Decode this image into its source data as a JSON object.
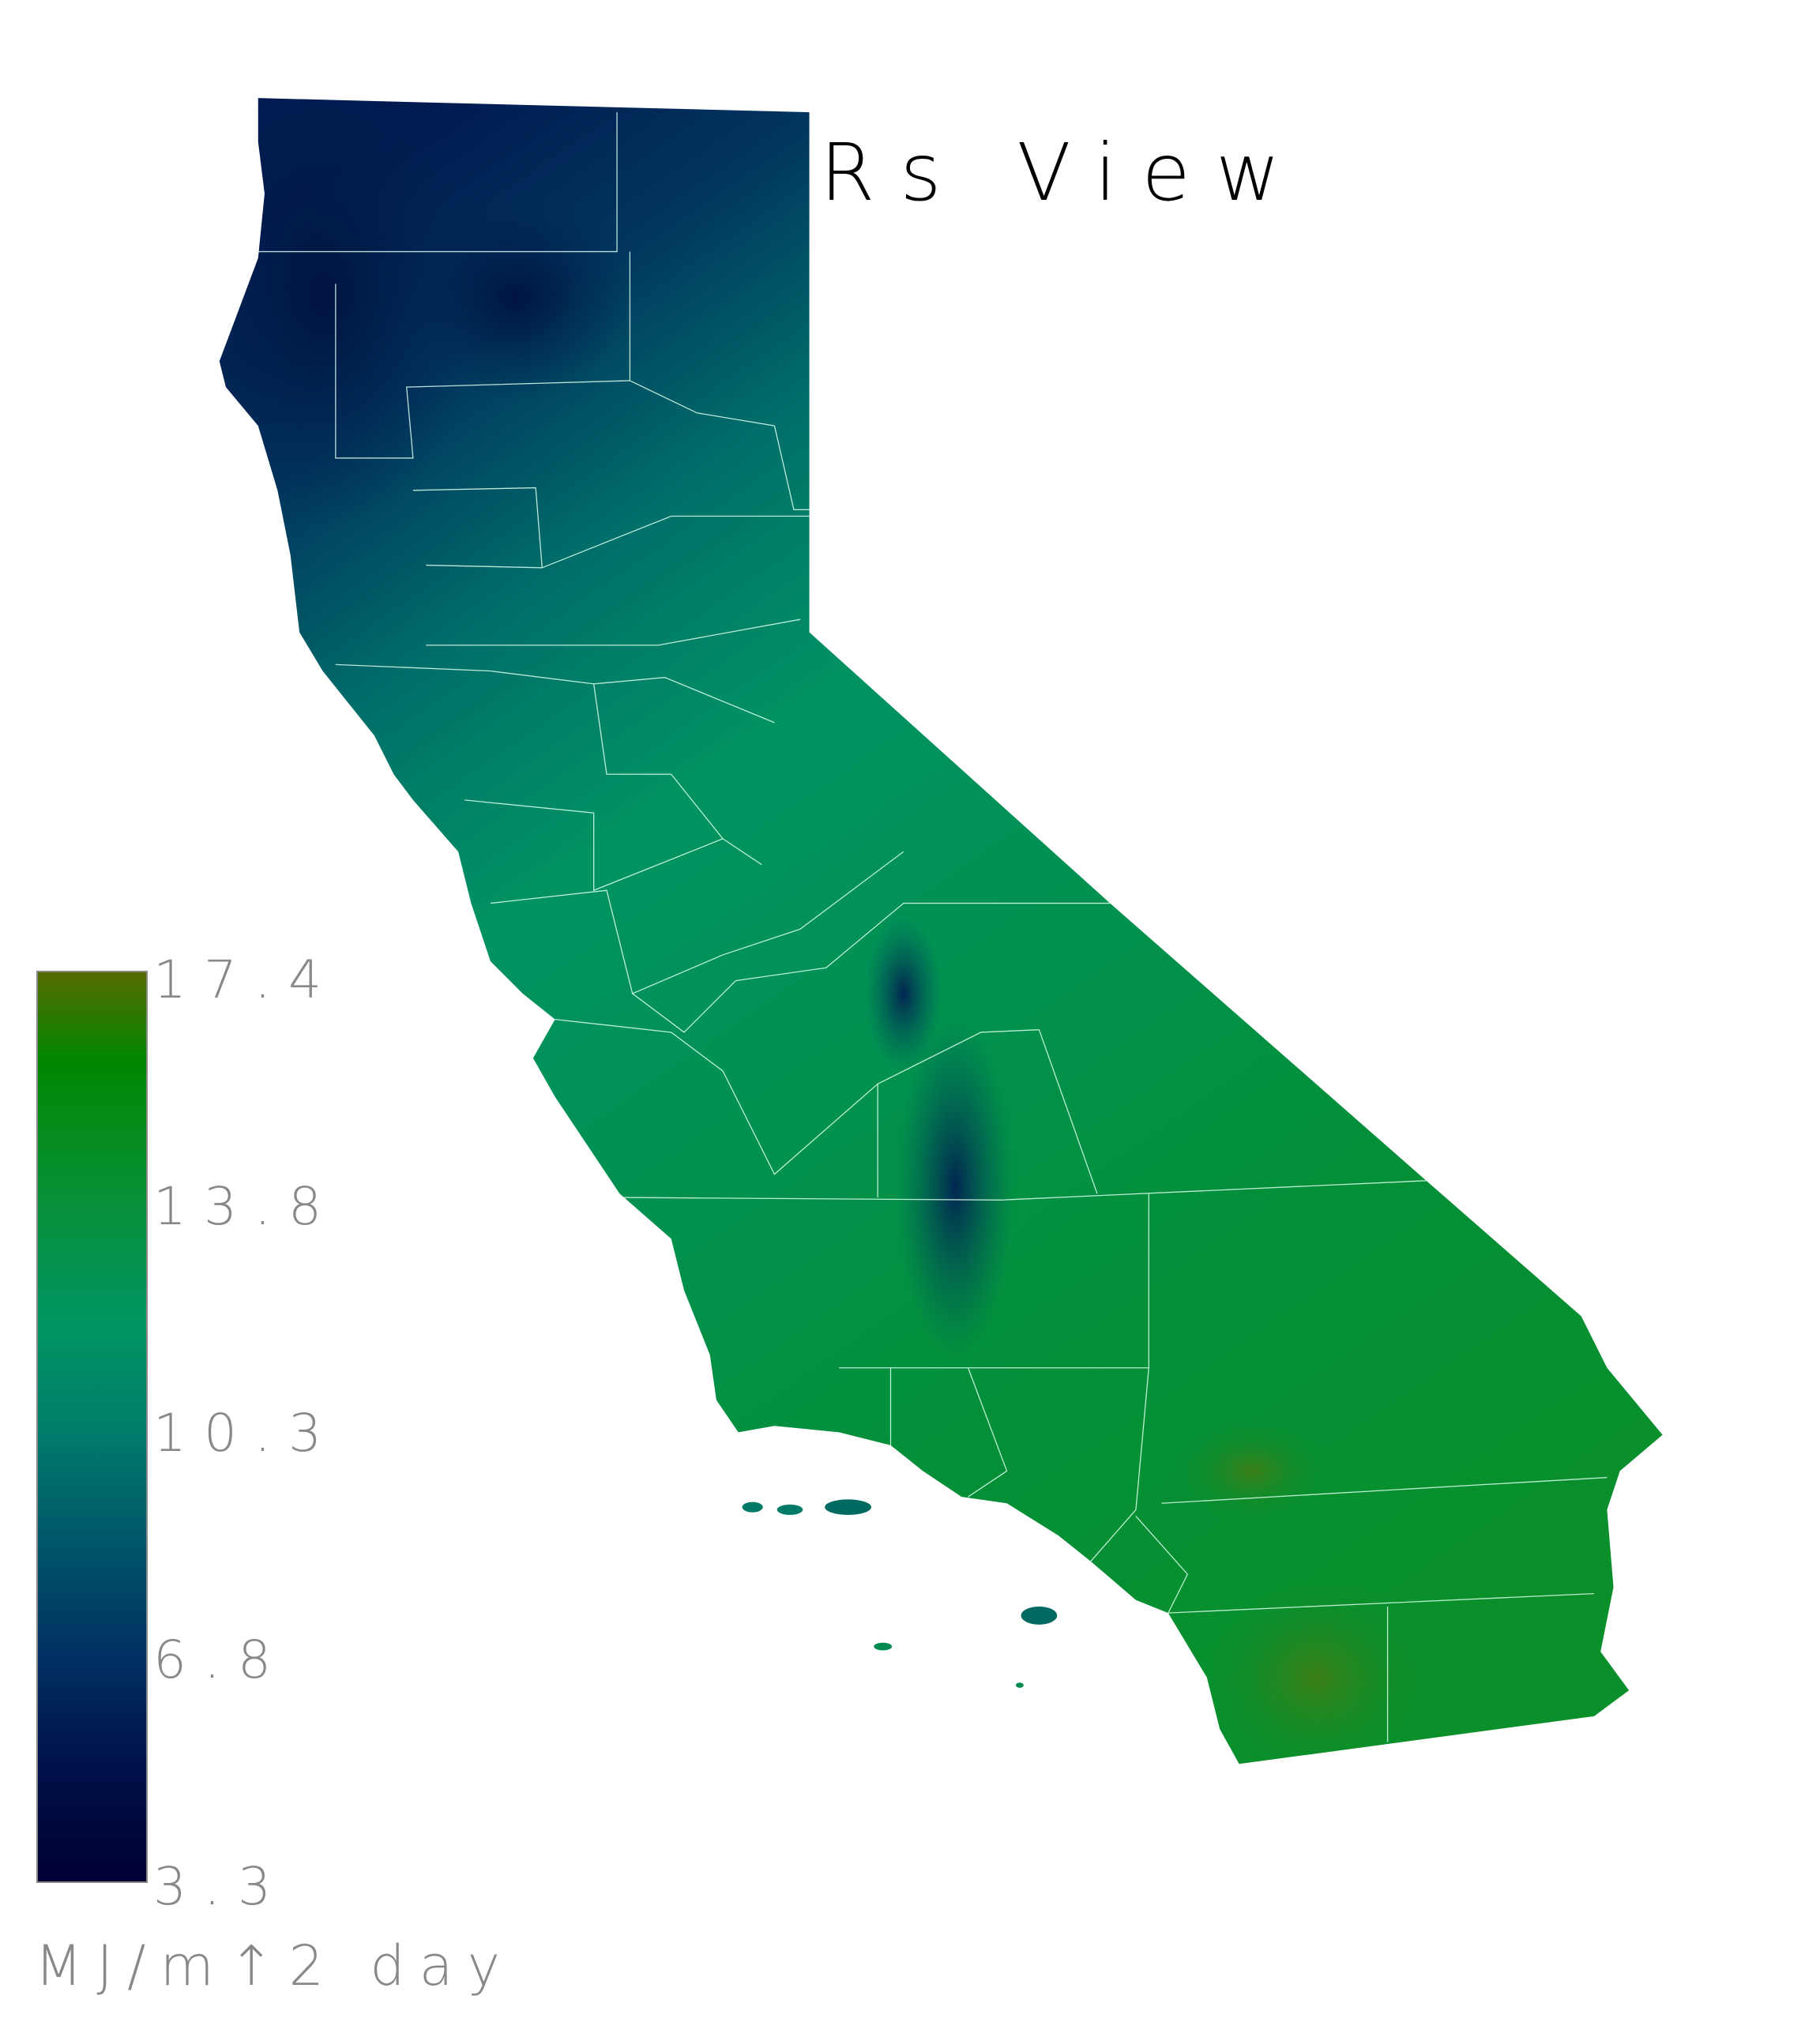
{
  "title": "Rs View",
  "colorbar": {
    "ticks": [
      "17.4",
      "13.8",
      "10.3",
      "6.8",
      "3.3"
    ],
    "units": "MJ/m↑2 day",
    "min": 3.3,
    "max": 17.4,
    "colors": {
      "17.4": "#556b00",
      "16.0": "#008800",
      "13.8": "#08903a",
      "12.0": "#009662",
      "10.3": "#007d6a",
      "8.5": "#00556a",
      "6.8": "#013062",
      "5.0": "#001048",
      "3.3": "#000033"
    }
  },
  "chart_data": {
    "type": "heatmap",
    "title": "Rs View",
    "region": "California",
    "variable": "Rs",
    "units": "MJ/m↑2 day",
    "range": [
      3.3,
      17.4
    ],
    "colorbar_ticks": [
      17.4,
      13.8,
      10.3,
      6.8,
      3.3
    ],
    "pattern": "low values (≈4–8) along the north coast and in the Sierra Nevada; high values (≈14–17) across the southern deserts"
  }
}
